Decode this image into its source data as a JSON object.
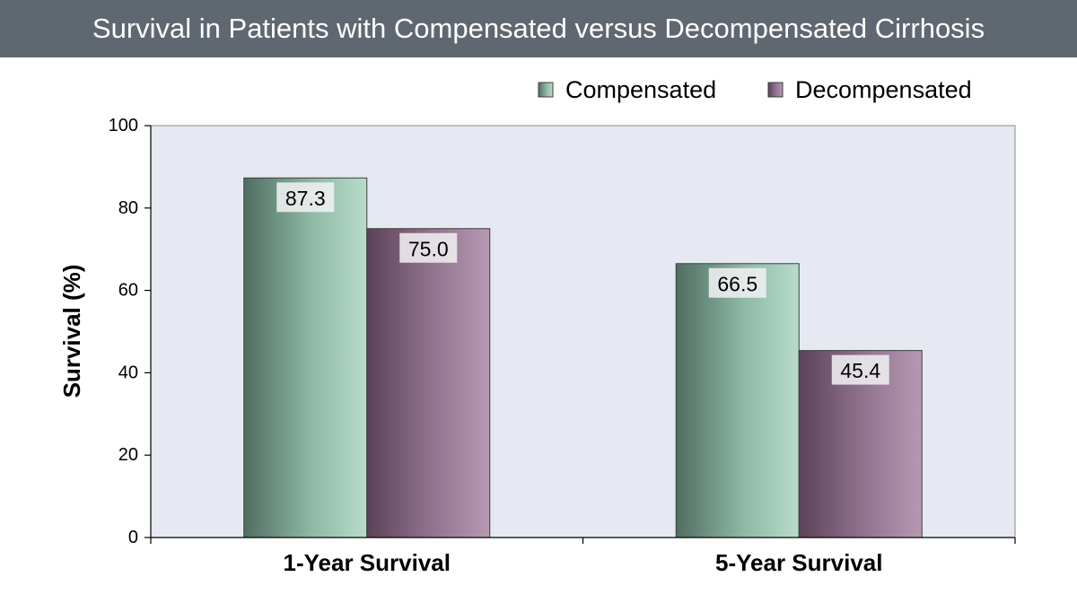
{
  "header": {
    "title": "Survival in Patients with Compensated versus Decompensated Cirrhosis"
  },
  "chart_data": {
    "type": "bar",
    "title": "Survival in Patients with Compensated versus Decompensated Cirrhosis",
    "categories": [
      "1-Year Survival",
      "5-Year Survival"
    ],
    "series": [
      {
        "name": "Compensated",
        "values": [
          87.3,
          66.5
        ],
        "labels": [
          "87.3",
          "66.5"
        ],
        "color": "#8fb8a5"
      },
      {
        "name": "Decompensated",
        "values": [
          75.0,
          45.4
        ],
        "labels": [
          "75.0",
          "45.4"
        ],
        "color": "#9c7d99"
      }
    ],
    "xlabel": "",
    "ylabel": "Survival (%)",
    "ylim": [
      0,
      100
    ],
    "yticks": [
      "0",
      "20",
      "40",
      "60",
      "80",
      "100"
    ],
    "grid": false,
    "legend": "top-right",
    "plot_background": "#e6e9f2"
  }
}
